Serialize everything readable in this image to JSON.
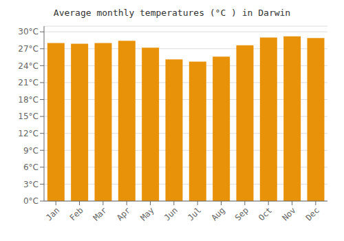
{
  "chart_data": {
    "type": "bar",
    "title": "Average monthly temperatures (°C ) in Darwin",
    "categories": [
      "Jan",
      "Feb",
      "Mar",
      "Apr",
      "May",
      "Jun",
      "Jul",
      "Aug",
      "Sep",
      "Oct",
      "Nov",
      "Dec"
    ],
    "values": [
      28.0,
      27.9,
      28.0,
      28.4,
      27.2,
      25.1,
      24.7,
      25.6,
      27.6,
      29.0,
      29.2,
      28.9
    ],
    "color": "#E8920A",
    "ylim": [
      0,
      31
    ],
    "yticks": [
      {
        "value": 0,
        "label": "0°C"
      },
      {
        "value": 3,
        "label": "3°C"
      },
      {
        "value": 6,
        "label": "6°C"
      },
      {
        "value": 9,
        "label": "9°C"
      },
      {
        "value": 12,
        "label": "12°C"
      },
      {
        "value": 15,
        "label": "15°C"
      },
      {
        "value": 18,
        "label": "18°C"
      },
      {
        "value": 21,
        "label": "21°C"
      },
      {
        "value": 24,
        "label": "24°C"
      },
      {
        "value": 27,
        "label": "27°C"
      },
      {
        "value": 30,
        "label": "30°C"
      }
    ],
    "grid": true
  }
}
